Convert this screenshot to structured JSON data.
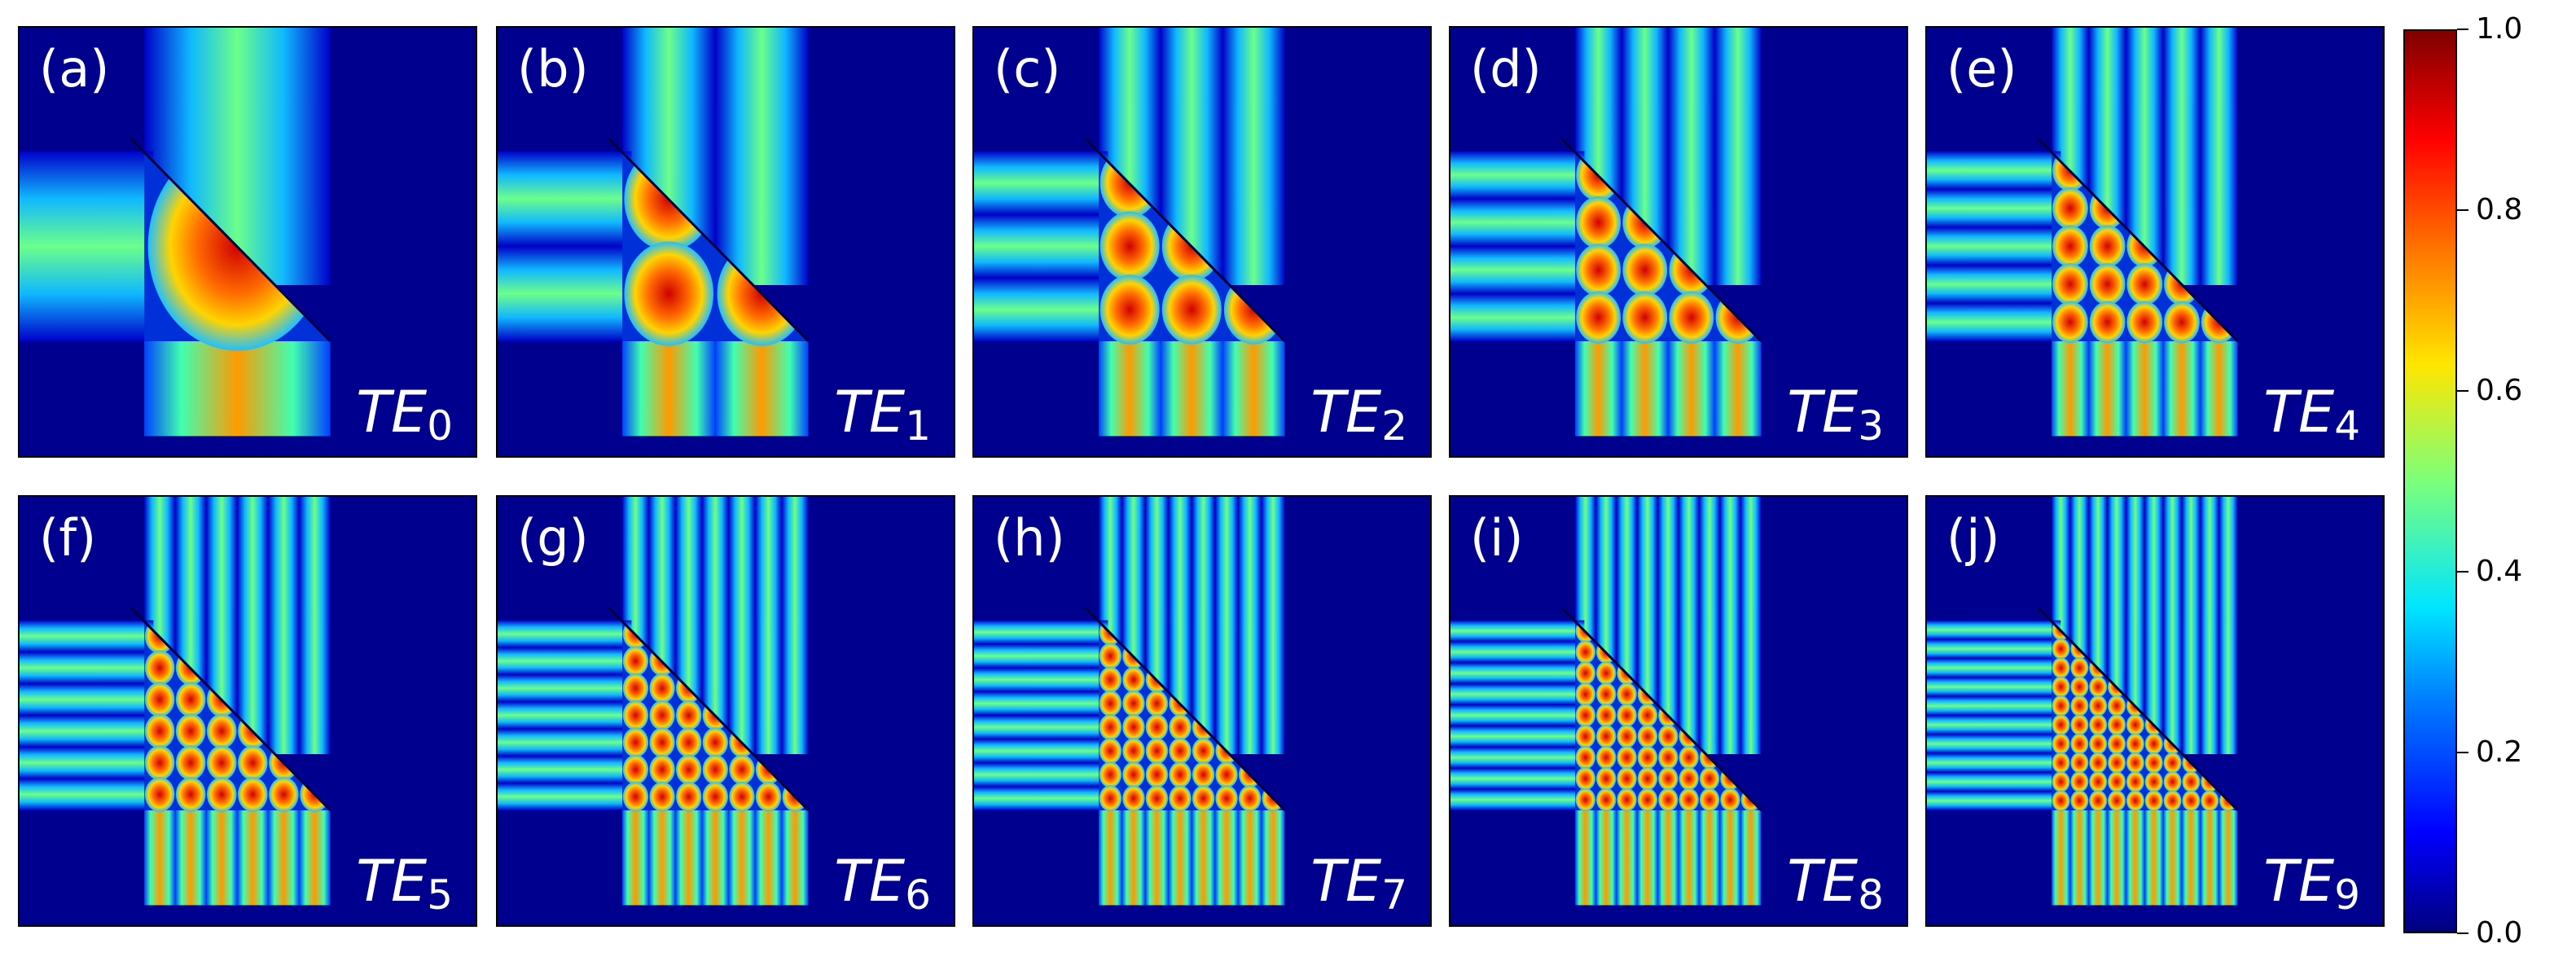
{
  "panels": [
    {
      "id": "(a)",
      "mode_sym": "TE",
      "mode_index": "0",
      "n": 0
    },
    {
      "id": "(b)",
      "mode_sym": "TE",
      "mode_index": "1",
      "n": 1
    },
    {
      "id": "(c)",
      "mode_sym": "TE",
      "mode_index": "2",
      "n": 2
    },
    {
      "id": "(d)",
      "mode_sym": "TE",
      "mode_index": "3",
      "n": 3
    },
    {
      "id": "(e)",
      "mode_sym": "TE",
      "mode_index": "4",
      "n": 4
    },
    {
      "id": "(f)",
      "mode_sym": "TE",
      "mode_index": "5",
      "n": 5
    },
    {
      "id": "(g)",
      "mode_sym": "TE",
      "mode_index": "6",
      "n": 6
    },
    {
      "id": "(h)",
      "mode_sym": "TE",
      "mode_index": "7",
      "n": 7
    },
    {
      "id": "(i)",
      "mode_sym": "TE",
      "mode_index": "8",
      "n": 8
    },
    {
      "id": "(j)",
      "mode_sym": "TE",
      "mode_index": "9",
      "n": 9
    }
  ],
  "colorbar": {
    "ticks": [
      "1.0",
      "0.8",
      "0.6",
      "0.4",
      "0.2",
      "0.0"
    ],
    "range": [
      0.0,
      1.0
    ],
    "colormap": "jet"
  },
  "colors": {
    "background": "#00008f",
    "dark": "#00009b",
    "mid": "#1fd8e8",
    "high": "#ffd000",
    "peak": "#d40000"
  }
}
